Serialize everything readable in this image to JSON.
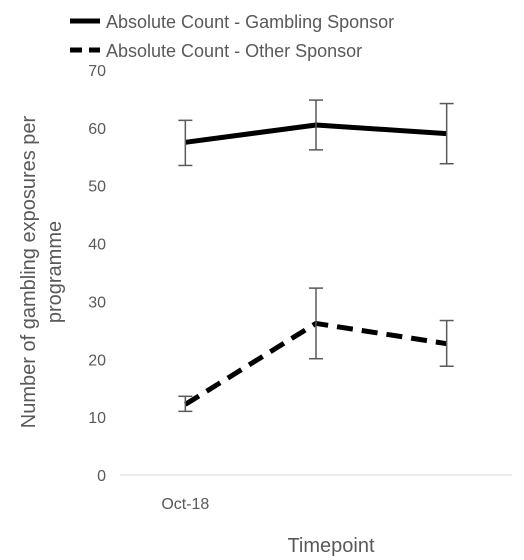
{
  "chart_data": {
    "type": "line",
    "title": "",
    "xlabel": "Timepoint",
    "ylabel": "Number of gambling exposures per programme",
    "ylim": [
      0,
      70
    ],
    "yticks": [
      0,
      10,
      20,
      30,
      40,
      50,
      60,
      70
    ],
    "categories": [
      "Oct-18",
      "",
      ""
    ],
    "grid": false,
    "legend_position": "top-left",
    "series": [
      {
        "name": "Absolute Count - Gambling Sponsor",
        "line_style": "solid",
        "color": "#000000",
        "values": [
          57.5,
          60.5,
          59.0
        ],
        "error_low": [
          53.5,
          56.2,
          53.8
        ],
        "error_high": [
          61.3,
          64.8,
          64.2
        ]
      },
      {
        "name": "Absolute Count - Other Sponsor",
        "line_style": "dashed",
        "color": "#000000",
        "values": [
          12.2,
          26.2,
          22.7
        ],
        "error_low": [
          11.0,
          20.1,
          18.8
        ],
        "error_high": [
          13.6,
          32.3,
          26.7
        ]
      }
    ]
  }
}
